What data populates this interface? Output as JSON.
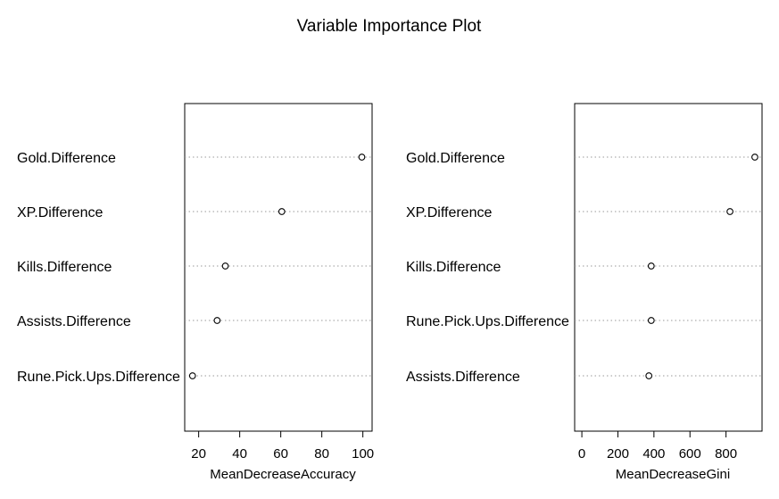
{
  "title": "Variable Importance Plot",
  "chart_data": [
    {
      "type": "scatter",
      "xlabel": "MeanDecreaseAccuracy",
      "ylabel": "",
      "categories": [
        "Gold.Difference",
        "XP.Difference",
        "Kills.Difference",
        "Assists.Difference",
        "Rune.Pick.Ups.Difference"
      ],
      "values": [
        99.5,
        60.5,
        33,
        29,
        17
      ],
      "xlim": [
        13.2,
        104.5
      ],
      "xticks": [
        20,
        40,
        60,
        80,
        100
      ],
      "grid": true,
      "legend": "none"
    },
    {
      "type": "scatter",
      "xlabel": "MeanDecreaseGini",
      "ylabel": "",
      "categories": [
        "Gold.Difference",
        "XP.Difference",
        "Kills.Difference",
        "Rune.Pick.Ups.Difference",
        "Assists.Difference"
      ],
      "values": [
        960,
        822,
        385,
        385,
        372
      ],
      "xlim": [
        -40,
        1000
      ],
      "xticks": [
        0,
        200,
        400,
        600,
        800
      ],
      "grid": true,
      "legend": "none"
    }
  ]
}
